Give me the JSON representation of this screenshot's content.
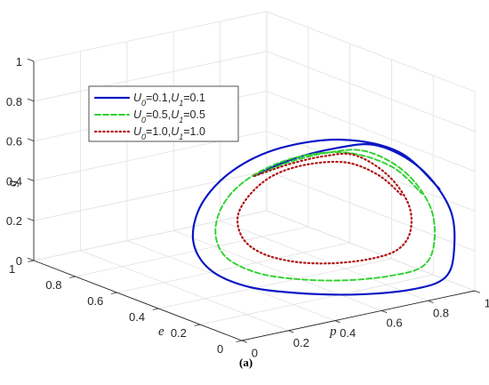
{
  "caption": "(a)",
  "chart_data": {
    "type": "line3d",
    "xlabel": "p",
    "ylabel": "e",
    "zlabel": "g",
    "xlim": [
      0,
      1
    ],
    "ylim": [
      0,
      1
    ],
    "zlim": [
      0,
      1
    ],
    "x_ticks": [
      "0",
      "0.2",
      "0.4",
      "0.6",
      "0.8",
      "1"
    ],
    "y_ticks": [
      "0",
      "0.2",
      "0.4",
      "0.6",
      "0.8",
      "1"
    ],
    "z_ticks": [
      "0",
      "0.2",
      "0.4",
      "0.6",
      "0.8",
      "1"
    ],
    "grid": true,
    "legend_position": "top-left",
    "series": [
      {
        "name": "U0=0.1,U1=0.1",
        "legend_parts": [
          "U",
          "0",
          "=0.1,",
          "U",
          "1",
          "=0.1"
        ],
        "style": "solid",
        "color": "#0b17c4",
        "points": [
          [
            0.5,
            0.5,
            0.5
          ],
          [
            0.6,
            0.44,
            0.58
          ],
          [
            0.72,
            0.36,
            0.64
          ],
          [
            0.83,
            0.28,
            0.66
          ],
          [
            0.9,
            0.15,
            0.58
          ],
          [
            0.92,
            0.03,
            0.42
          ],
          [
            0.92,
            0.01,
            0.22
          ],
          [
            0.9,
            0.03,
            0.08
          ],
          [
            0.8,
            0.07,
            0.03
          ],
          [
            0.62,
            0.14,
            0.02
          ],
          [
            0.45,
            0.24,
            0.03
          ],
          [
            0.33,
            0.35,
            0.05
          ],
          [
            0.28,
            0.47,
            0.1
          ],
          [
            0.3,
            0.57,
            0.2
          ],
          [
            0.4,
            0.64,
            0.33
          ],
          [
            0.55,
            0.66,
            0.45
          ],
          [
            0.7,
            0.6,
            0.55
          ],
          [
            0.83,
            0.45,
            0.62
          ],
          [
            0.9,
            0.25,
            0.62
          ],
          [
            0.92,
            0.08,
            0.5
          ]
        ]
      },
      {
        "name": "U0=0.5,U1=0.5",
        "legend_parts": [
          "U",
          "0",
          "=0.5,",
          "U",
          "1",
          "=0.5"
        ],
        "style": "dashed",
        "color": "#2fd12f",
        "points": [
          [
            0.5,
            0.5,
            0.5
          ],
          [
            0.6,
            0.44,
            0.57
          ],
          [
            0.7,
            0.37,
            0.62
          ],
          [
            0.8,
            0.3,
            0.63
          ],
          [
            0.86,
            0.18,
            0.56
          ],
          [
            0.88,
            0.08,
            0.42
          ],
          [
            0.88,
            0.06,
            0.25
          ],
          [
            0.85,
            0.08,
            0.13
          ],
          [
            0.75,
            0.12,
            0.09
          ],
          [
            0.6,
            0.18,
            0.08
          ],
          [
            0.46,
            0.26,
            0.09
          ],
          [
            0.37,
            0.35,
            0.11
          ],
          [
            0.33,
            0.45,
            0.16
          ],
          [
            0.36,
            0.53,
            0.25
          ],
          [
            0.45,
            0.58,
            0.36
          ],
          [
            0.58,
            0.59,
            0.45
          ],
          [
            0.71,
            0.53,
            0.53
          ],
          [
            0.81,
            0.4,
            0.58
          ],
          [
            0.86,
            0.24,
            0.56
          ],
          [
            0.88,
            0.12,
            0.47
          ]
        ]
      },
      {
        "name": "U0=1.0,U1=1.0",
        "legend_parts": [
          "U",
          "0",
          "=1.0,",
          "U",
          "1",
          "=1.0"
        ],
        "style": "dotted",
        "color": "#b01515",
        "points": [
          [
            0.5,
            0.5,
            0.5
          ],
          [
            0.6,
            0.44,
            0.56
          ],
          [
            0.69,
            0.38,
            0.6
          ],
          [
            0.77,
            0.32,
            0.61
          ],
          [
            0.82,
            0.22,
            0.54
          ],
          [
            0.84,
            0.14,
            0.42
          ],
          [
            0.83,
            0.12,
            0.29
          ],
          [
            0.79,
            0.14,
            0.2
          ],
          [
            0.7,
            0.18,
            0.16
          ],
          [
            0.58,
            0.23,
            0.15
          ],
          [
            0.48,
            0.29,
            0.16
          ],
          [
            0.41,
            0.36,
            0.19
          ],
          [
            0.39,
            0.43,
            0.24
          ],
          [
            0.42,
            0.49,
            0.32
          ],
          [
            0.5,
            0.52,
            0.4
          ],
          [
            0.6,
            0.52,
            0.47
          ],
          [
            0.7,
            0.47,
            0.52
          ],
          [
            0.78,
            0.37,
            0.55
          ],
          [
            0.82,
            0.26,
            0.52
          ],
          [
            0.84,
            0.17,
            0.45
          ]
        ]
      }
    ]
  }
}
